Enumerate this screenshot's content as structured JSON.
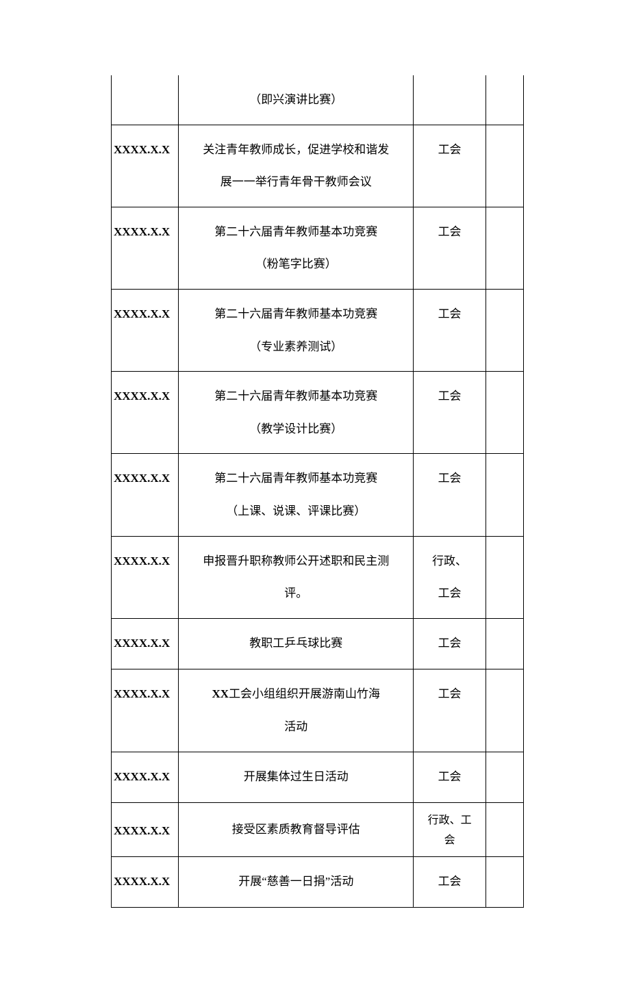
{
  "table": {
    "date_placeholder": "XXXX.X.X",
    "border_color": "#000000",
    "background_color": "#ffffff",
    "text_color": "#000000",
    "font_size": 17,
    "columns": {
      "date_width": 93,
      "content_width": 324,
      "org_width": 100,
      "empty_width": 52
    },
    "rows": [
      {
        "date": "",
        "content_lines": [
          "（即兴演讲比赛）"
        ],
        "org": "",
        "partial_top": true
      },
      {
        "date": "XXXX.X.X",
        "content_lines": [
          "关注青年教师成长，促进学校和谐发",
          "展一一举行青年骨干教师会议"
        ],
        "org": "工会"
      },
      {
        "date": "XXXX.X.X",
        "content_lines": [
          "第二十六届青年教师基本功竞赛",
          "（粉笔字比赛）"
        ],
        "org": "工会"
      },
      {
        "date": "XXXX.X.X",
        "content_lines": [
          "第二十六届青年教师基本功竞赛",
          "（专业素养测试）"
        ],
        "org": "工会"
      },
      {
        "date": "XXXX.X.X",
        "content_lines": [
          "第二十六届青年教师基本功竞赛",
          "（教学设计比赛）"
        ],
        "org": "工会"
      },
      {
        "date": "XXXX.X.X",
        "content_lines": [
          "第二十六届青年教师基本功竞赛",
          "（上课、说课、评课比赛）"
        ],
        "org": "工会"
      },
      {
        "date": "XXXX.X.X",
        "content_lines": [
          "申报晋升职称教师公开述职和民主测",
          "评。"
        ],
        "org_lines": [
          "行政、",
          "工会"
        ]
      },
      {
        "date": "XXXX.X.X",
        "content_lines": [
          "教职工乒乓球比赛"
        ],
        "org": "工会"
      },
      {
        "date": "XXXX.X.X",
        "content_prefix_bold": "XX",
        "content_lines_after": [
          "工会小组组织开展游南山竹海",
          "活动"
        ],
        "org": "工会"
      },
      {
        "date": "XXXX.X.X",
        "content_lines": [
          "开展集体过生日活动"
        ],
        "org": "工会"
      },
      {
        "date": "XXXX.X.X",
        "content_lines": [
          "接受区素质教育督导评估"
        ],
        "org_lines": [
          "行政、工",
          "会"
        ],
        "org_tight": true
      },
      {
        "date": "XXXX.X.X",
        "content_lines": [
          "开展“慈善一日捐”活动"
        ],
        "org": "工会"
      }
    ]
  }
}
